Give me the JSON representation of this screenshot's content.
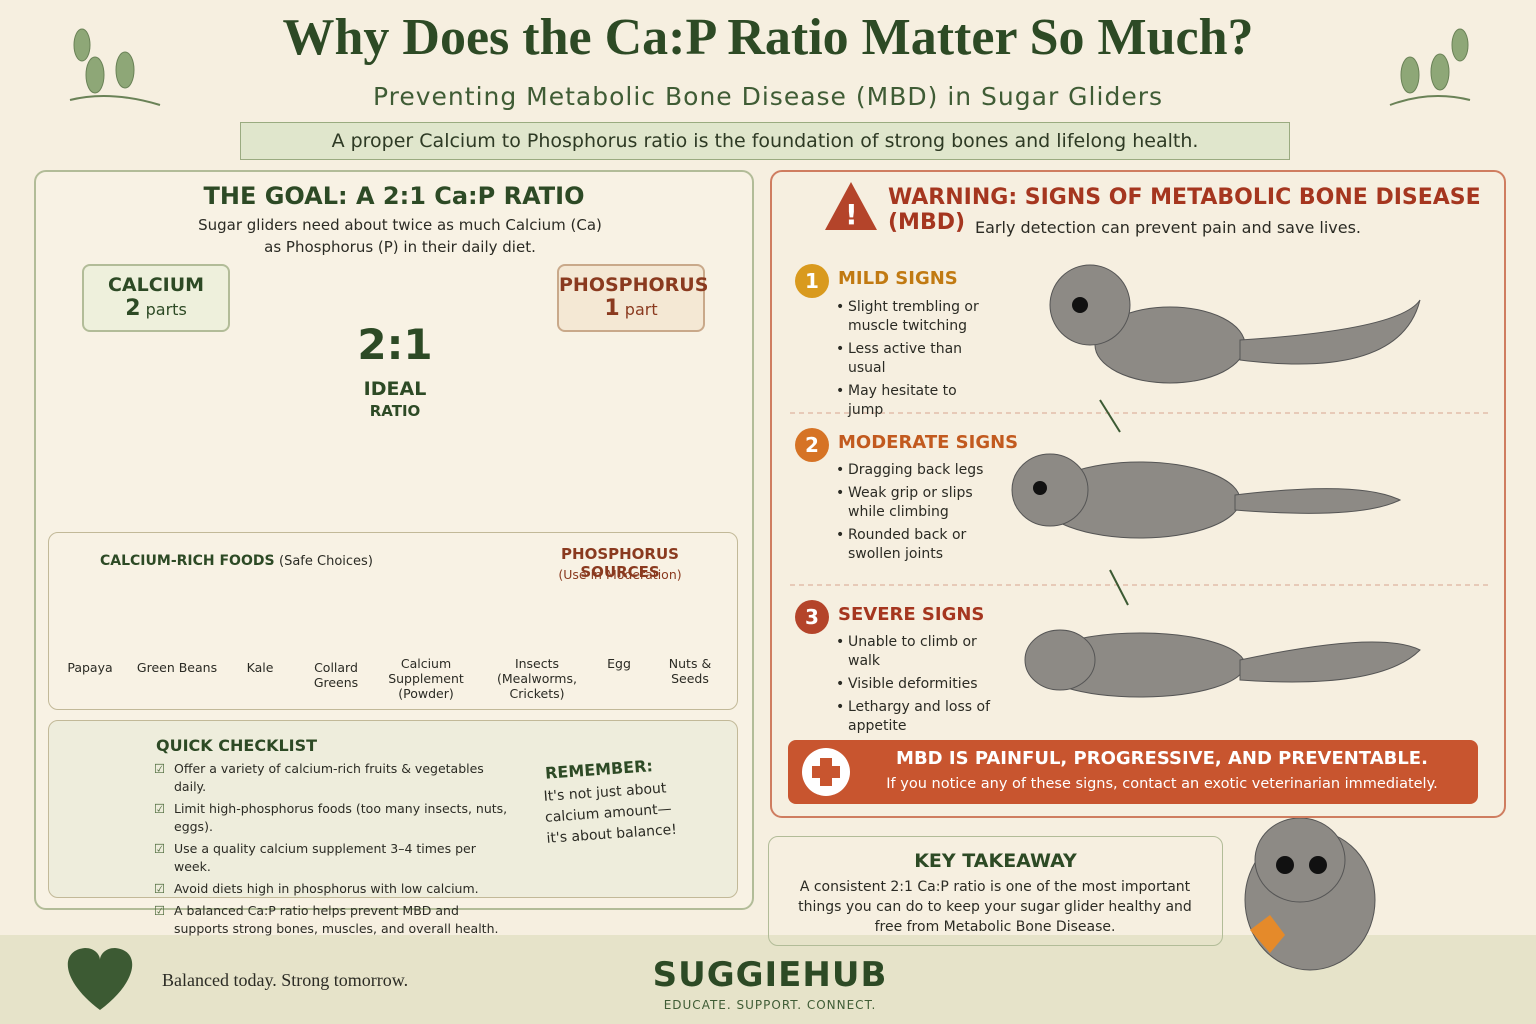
{
  "header": {
    "title": "Why Does the Ca:P Ratio Matter So Much?",
    "subtitle": "Preventing Metabolic Bone Disease (MBD) in Sugar Gliders",
    "banner": "A proper Calcium to Phosphorus ratio is the foundation of strong bones and lifelong health."
  },
  "goal": {
    "heading": "THE GOAL: A 2:1 Ca:P RATIO",
    "description": "Sugar gliders need about twice as much Calcium (Ca) as Phosphorus (P) in their daily diet.",
    "calcium": {
      "label": "CALCIUM",
      "amount": "2",
      "unit": "parts"
    },
    "phosphorus": {
      "label": "PHOSPHORUS",
      "amount": "1",
      "unit": "part"
    },
    "ratio": {
      "value": "2:1",
      "line1": "IDEAL",
      "line2": "RATIO"
    }
  },
  "calcium_foods": {
    "heading": "CALCIUM-RICH FOODS",
    "note": "(Safe Choices)",
    "items": [
      "Papaya",
      "Green Beans",
      "Kale",
      "Collard Greens",
      "Calcium Supplement (Powder)"
    ]
  },
  "phosphorus_sources": {
    "heading": "PHOSPHORUS SOURCES",
    "note": "(Use in Moderation)",
    "items": [
      "Insects (Mealworms, Crickets)",
      "Egg",
      "Nuts & Seeds"
    ]
  },
  "checklist": {
    "heading": "QUICK CHECKLIST",
    "items": [
      "Offer a variety of calcium-rich fruits & vegetables daily.",
      "Limit high-phosphorus foods (too many insects, nuts, eggs).",
      "Use a quality calcium supplement 3–4 times per week.",
      "Avoid diets high in phosphorus with low calcium.",
      "A balanced Ca:P ratio helps prevent MBD and supports strong bones, muscles, and overall health."
    ]
  },
  "remember": {
    "heading": "REMEMBER:",
    "text": "It's not just about calcium amount— it's about balance!"
  },
  "warning": {
    "heading": "WARNING: SIGNS OF METABOLIC BONE DISEASE (MBD)",
    "subtitle": "Early detection can prevent pain and save lives.",
    "stages": [
      {
        "number": "1",
        "title": "MILD SIGNS",
        "signs": [
          "Slight trembling or muscle twitching",
          "Less active than usual",
          "May hesitate to jump"
        ]
      },
      {
        "number": "2",
        "title": "MODERATE SIGNS",
        "signs": [
          "Dragging back legs",
          "Weak grip or slips while climbing",
          "Rounded back or swollen joints"
        ]
      },
      {
        "number": "3",
        "title": "SEVERE SIGNS",
        "signs": [
          "Unable to climb or walk",
          "Visible deformities",
          "Lethargy and loss of appetite"
        ]
      }
    ]
  },
  "alert": {
    "heading": "MBD IS PAINFUL, PROGRESSIVE, AND PREVENTABLE.",
    "text": "If you notice any of these signs, contact an exotic veterinarian immediately."
  },
  "takeaway": {
    "heading": "KEY TAKEAWAY",
    "text": "A consistent 2:1 Ca:P ratio is one of the most important things you can do to keep your sugar glider healthy and free from Metabolic Bone Disease."
  },
  "footer": {
    "slogan": "Balanced today. Strong tomorrow.",
    "brand": "SUGGIEHUB",
    "tagline": "EDUCATE. SUPPORT. CONNECT."
  }
}
